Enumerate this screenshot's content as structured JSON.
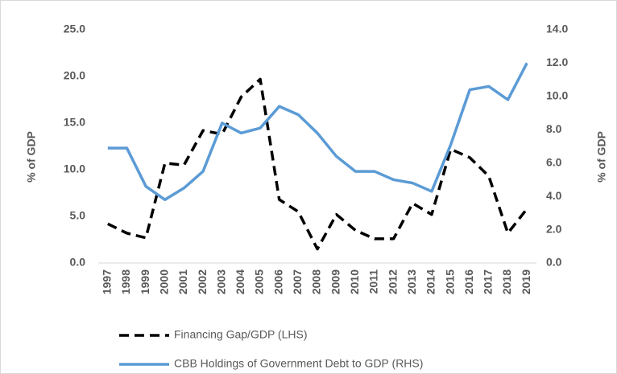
{
  "chart_data": {
    "type": "line",
    "x": [
      "1997",
      "1998",
      "1999",
      "2000",
      "2001",
      "2002",
      "2003",
      "2004",
      "2005",
      "2006",
      "2007",
      "2008",
      "2009",
      "2010",
      "2011",
      "2012",
      "2013",
      "2014",
      "2015",
      "2016",
      "2017",
      "2018",
      "2019"
    ],
    "y_label": "% of GDP",
    "y2_label": "% of GDP",
    "series": [
      {
        "name": "Financing Gap/GDP (LHS)",
        "color": "#000000",
        "dash": true,
        "axis": "y",
        "values": [
          4.2,
          3.2,
          2.7,
          10.7,
          10.5,
          14.2,
          13.8,
          17.8,
          19.7,
          6.8,
          5.5,
          1.5,
          5.2,
          3.5,
          2.6,
          2.6,
          6.4,
          5.2,
          12.2,
          11.3,
          9.3,
          3.2,
          5.8
        ]
      },
      {
        "name": "CBB Holdings of Government Debt to GDP (RHS)",
        "color": "#5b9bd5",
        "dash": false,
        "axis": "y2",
        "values": [
          6.9,
          6.9,
          4.6,
          3.8,
          4.5,
          5.5,
          8.4,
          7.8,
          8.1,
          9.4,
          8.9,
          7.8,
          6.4,
          5.5,
          5.5,
          5.0,
          4.8,
          4.3,
          7.1,
          10.4,
          10.6,
          9.8,
          12.0
        ]
      }
    ],
    "ylim": [
      0,
      25
    ],
    "yticks": [
      {
        "value": 0,
        "label": "0.0"
      },
      {
        "value": 5,
        "label": "5.0"
      },
      {
        "value": 10,
        "label": "10.0"
      },
      {
        "value": 15,
        "label": "15.0"
      },
      {
        "value": 20,
        "label": "20.0"
      },
      {
        "value": 25,
        "label": "25.0"
      }
    ],
    "y2lim": [
      0,
      14
    ],
    "y2ticks": [
      {
        "value": 0,
        "label": "0.0"
      },
      {
        "value": 2,
        "label": "2.0"
      },
      {
        "value": 4,
        "label": "4.0"
      },
      {
        "value": 6,
        "label": "6.0"
      },
      {
        "value": 8,
        "label": "8.0"
      },
      {
        "value": 10,
        "label": "10.0"
      },
      {
        "value": 12,
        "label": "12.0"
      },
      {
        "value": 14,
        "label": "14.0"
      }
    ],
    "grid": false,
    "legend": "bottom"
  }
}
